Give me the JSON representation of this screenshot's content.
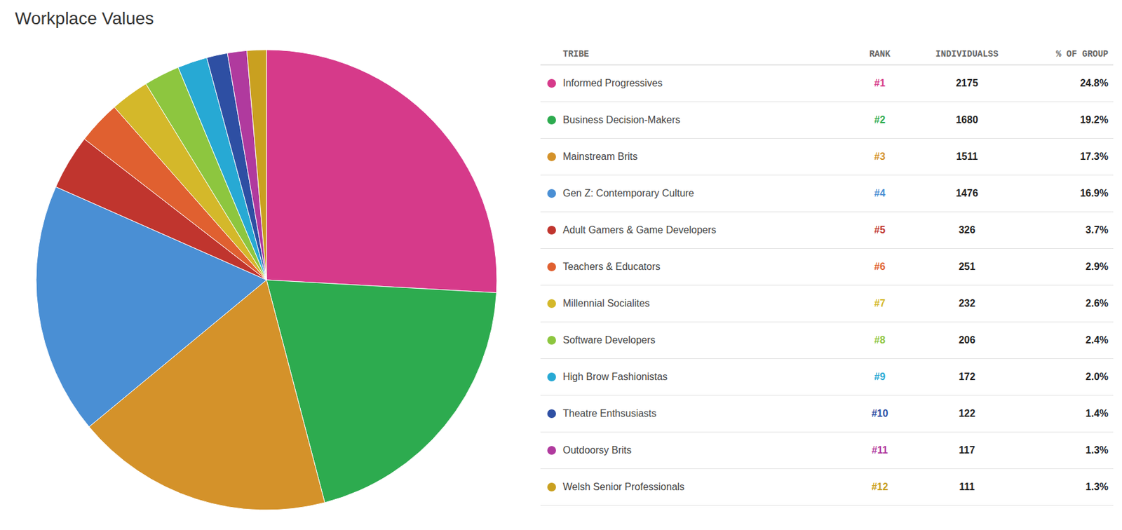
{
  "chart_data": {
    "type": "pie",
    "title": "Workplace Values",
    "header": [
      "TRIBE",
      "RANK",
      "INDIVIDUALSS",
      "% OF GROUP"
    ],
    "categories": [
      "Informed Progressives",
      "Business Decision-Makers",
      "Mainstream Brits",
      "Gen Z: Contemporary Culture",
      "Adult Gamers & Game Developers",
      "Teachers & Educators",
      "Millennial Socialites",
      "Software Developers",
      "High Brow Fashionistas",
      "Theatre Enthsusiasts",
      "Outdoorsy Brits",
      "Welsh Senior Professionals"
    ],
    "ranks": [
      "#1",
      "#2",
      "#3",
      "#4",
      "#5",
      "#6",
      "#7",
      "#8",
      "#9",
      "#10",
      "#11",
      "#12"
    ],
    "individuals": [
      2175,
      1680,
      1511,
      1476,
      326,
      251,
      232,
      206,
      172,
      122,
      117,
      111
    ],
    "values": [
      24.8,
      19.2,
      17.3,
      16.9,
      3.7,
      2.9,
      2.6,
      2.4,
      2.0,
      1.4,
      1.3,
      1.3
    ],
    "value_labels": [
      "24.8%",
      "19.2%",
      "17.3%",
      "16.9%",
      "3.7%",
      "2.9%",
      "2.6%",
      "2.4%",
      "2.0%",
      "1.4%",
      "1.3%",
      "1.3%"
    ],
    "colors": [
      "#d63a8a",
      "#2dab4f",
      "#d4922a",
      "#4a8fd4",
      "#c0352e",
      "#e06030",
      "#d4b82a",
      "#8dc63f",
      "#27a9d4",
      "#2e4fa3",
      "#b03a9e",
      "#c9a020"
    ]
  }
}
